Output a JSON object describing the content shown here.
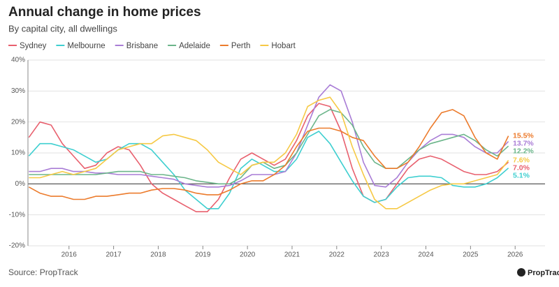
{
  "chart_data": {
    "type": "line",
    "title": "Annual change in home prices",
    "subtitle": "By capital city, all dwellings",
    "source": "Source: PropTrack",
    "brand": "PropTrack",
    "x": [
      2015.1,
      2015.35,
      2015.6,
      2015.85,
      2016.1,
      2016.35,
      2016.6,
      2016.85,
      2017.1,
      2017.35,
      2017.6,
      2017.85,
      2018.1,
      2018.35,
      2018.6,
      2018.85,
      2019.1,
      2019.35,
      2019.6,
      2019.85,
      2020.1,
      2020.35,
      2020.6,
      2020.85,
      2021.1,
      2021.35,
      2021.6,
      2021.85,
      2022.1,
      2022.35,
      2022.6,
      2022.85,
      2023.1,
      2023.35,
      2023.6,
      2023.85,
      2024.1,
      2024.35,
      2024.6,
      2024.85,
      2025.1,
      2025.35,
      2025.6,
      2025.85
    ],
    "xlim": [
      2015.08,
      2026.67
    ],
    "xticks": [
      2016,
      2017,
      2018,
      2019,
      2020,
      2021,
      2022,
      2023,
      2024,
      2025,
      2026
    ],
    "ylim": [
      -20,
      40
    ],
    "yticks": [
      {
        "value": -20,
        "label": "-20%"
      },
      {
        "value": -10,
        "label": "-10%"
      },
      {
        "value": 0,
        "label": "0%"
      },
      {
        "value": 10,
        "label": "10%"
      },
      {
        "value": 20,
        "label": "20%"
      },
      {
        "value": 30,
        "label": "30%"
      },
      {
        "value": 40,
        "label": "40%"
      }
    ],
    "grid": true,
    "legend": "top",
    "series": [
      {
        "name": "Sydney",
        "color": "#e8606e",
        "values": [
          15,
          20,
          19,
          13,
          9,
          5,
          6,
          10,
          12,
          11,
          6,
          0,
          -3,
          -5,
          -7,
          -9,
          -9,
          -5,
          2,
          8,
          10,
          8,
          6,
          8,
          14,
          22,
          26,
          25,
          17,
          5,
          -4,
          -6,
          -5,
          0,
          5,
          8,
          9,
          8,
          6,
          4,
          3,
          3,
          4,
          7.0
        ],
        "value_labels": [
          null,
          null,
          null,
          null,
          null,
          null,
          null,
          null,
          null,
          null,
          null,
          null,
          null,
          null,
          null,
          null,
          null,
          null,
          null,
          null,
          null,
          null,
          null,
          null,
          null,
          null,
          null,
          null,
          null,
          null,
          null,
          null,
          null,
          null,
          null,
          null,
          null,
          null,
          null,
          null,
          null,
          null,
          null,
          "7.0%"
        ]
      },
      {
        "name": "Melbourne",
        "color": "#3ecfd0",
        "values": [
          9,
          13,
          13,
          12,
          11,
          9,
          7,
          8,
          11,
          13,
          13,
          11,
          7,
          3,
          -2,
          -5,
          -8,
          -8,
          -3,
          5,
          8,
          6,
          4,
          4,
          8,
          15,
          17,
          13,
          7,
          1,
          -4,
          -6,
          -5,
          -1,
          2,
          2.5,
          2.5,
          2,
          -0.5,
          -1,
          -1,
          0,
          2,
          5.1
        ],
        "value_labels": [
          null,
          null,
          null,
          null,
          null,
          null,
          null,
          null,
          null,
          null,
          null,
          null,
          null,
          null,
          null,
          null,
          null,
          null,
          null,
          null,
          null,
          null,
          null,
          null,
          null,
          null,
          null,
          null,
          null,
          null,
          null,
          null,
          null,
          null,
          null,
          null,
          null,
          null,
          null,
          null,
          null,
          null,
          null,
          "5.1%"
        ]
      },
      {
        "name": "Brisbane",
        "color": "#a97dd6",
        "values": [
          4,
          4,
          5,
          5,
          4,
          4,
          3.5,
          3.5,
          3,
          3,
          3,
          2.5,
          2,
          1.5,
          0,
          -0.5,
          -1,
          -1,
          -0.5,
          1,
          3,
          3,
          3,
          4,
          10,
          19,
          28,
          32,
          30,
          20,
          7,
          -0.5,
          -1,
          2,
          7,
          11,
          14,
          16,
          16,
          15,
          12,
          10,
          10,
          13.7
        ],
        "value_labels": [
          null,
          null,
          null,
          null,
          null,
          null,
          null,
          null,
          null,
          null,
          null,
          null,
          null,
          null,
          null,
          null,
          null,
          null,
          null,
          null,
          null,
          null,
          null,
          null,
          null,
          null,
          null,
          null,
          null,
          null,
          null,
          null,
          null,
          null,
          null,
          null,
          null,
          null,
          null,
          null,
          null,
          null,
          null,
          "13.7%"
        ]
      },
      {
        "name": "Adelaide",
        "color": "#6bb58a",
        "values": [
          3,
          3,
          3,
          3,
          3,
          3,
          3,
          3.5,
          4,
          4,
          4,
          3,
          3,
          2.5,
          2,
          1,
          0.5,
          0,
          0,
          2,
          6,
          7,
          5,
          6,
          10,
          16,
          22,
          24,
          23,
          19,
          12,
          7,
          5,
          5,
          8,
          11,
          13,
          14,
          15,
          16,
          14,
          11,
          9,
          12.2
        ],
        "value_labels": [
          null,
          null,
          null,
          null,
          null,
          null,
          null,
          null,
          null,
          null,
          null,
          null,
          null,
          null,
          null,
          null,
          null,
          null,
          null,
          null,
          null,
          null,
          null,
          null,
          null,
          null,
          null,
          null,
          null,
          null,
          null,
          null,
          null,
          null,
          null,
          null,
          null,
          null,
          null,
          null,
          null,
          null,
          null,
          "12.2%"
        ]
      },
      {
        "name": "Perth",
        "color": "#ec7b2c",
        "values": [
          -1,
          -3,
          -4,
          -4,
          -5,
          -5,
          -4,
          -4,
          -3.5,
          -3,
          -3,
          -2,
          -1.5,
          -1.5,
          -2,
          -3,
          -3.5,
          -3.5,
          -2,
          0,
          1,
          1,
          3,
          6,
          12,
          17,
          18,
          18,
          17,
          15,
          14,
          9,
          5,
          5,
          7,
          12,
          18,
          23,
          24,
          22,
          15,
          10,
          8,
          15.5
        ],
        "value_labels": [
          null,
          null,
          null,
          null,
          null,
          null,
          null,
          null,
          null,
          null,
          null,
          null,
          null,
          null,
          null,
          null,
          null,
          null,
          null,
          null,
          null,
          null,
          null,
          null,
          null,
          null,
          null,
          null,
          null,
          null,
          null,
          null,
          null,
          null,
          null,
          null,
          null,
          null,
          null,
          null,
          null,
          null,
          null,
          "15.5%"
        ]
      },
      {
        "name": "Hobart",
        "color": "#f6c945",
        "values": [
          2,
          2,
          3,
          4,
          3,
          4,
          5,
          8,
          11,
          12,
          13,
          13,
          15.5,
          16,
          15,
          14,
          11,
          7,
          5,
          3,
          6,
          7,
          7,
          10,
          16,
          25,
          27,
          28,
          23,
          12,
          3,
          -5,
          -8,
          -8,
          -6,
          -4,
          -2,
          -0.5,
          0,
          0,
          1,
          2,
          3,
          7.6
        ],
        "value_labels": [
          null,
          null,
          null,
          null,
          null,
          null,
          null,
          null,
          null,
          null,
          null,
          null,
          null,
          null,
          null,
          null,
          null,
          null,
          null,
          null,
          null,
          null,
          null,
          null,
          null,
          null,
          null,
          null,
          null,
          null,
          null,
          null,
          null,
          null,
          null,
          null,
          null,
          null,
          null,
          null,
          null,
          null,
          null,
          "7.6%"
        ]
      }
    ]
  }
}
